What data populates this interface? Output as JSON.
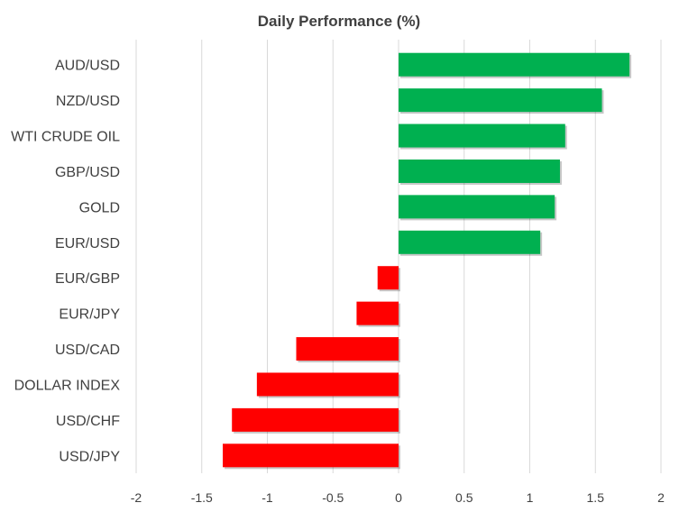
{
  "chart_data": {
    "type": "bar",
    "orientation": "horizontal",
    "title": "Daily Performance (%)",
    "xlabel": "",
    "ylabel": "",
    "categories": [
      "AUD/USD",
      "NZD/USD",
      "WTI CRUDE OIL",
      "GBP/USD",
      "GOLD",
      "EUR/USD",
      "EUR/GBP",
      "EUR/JPY",
      "USD/CAD",
      "DOLLAR INDEX",
      "USD/CHF",
      "USD/JPY"
    ],
    "values": [
      1.76,
      1.55,
      1.27,
      1.23,
      1.19,
      1.08,
      -0.16,
      -0.32,
      -0.78,
      -1.08,
      -1.27,
      -1.34
    ],
    "xlim": [
      -2,
      2
    ],
    "xticks": [
      -2,
      -1.5,
      -1,
      -0.5,
      0,
      0.5,
      1,
      1.5,
      2
    ],
    "xtick_labels": [
      "-2",
      "-1.5",
      "-1",
      "-0.5",
      "0",
      "0.5",
      "1",
      "1.5",
      "2"
    ],
    "grid": "vertical",
    "legend": "none",
    "colors": {
      "positive": "#00b050",
      "negative": "#ff0000",
      "grid": "#d9d9d9",
      "text": "#404040"
    }
  }
}
